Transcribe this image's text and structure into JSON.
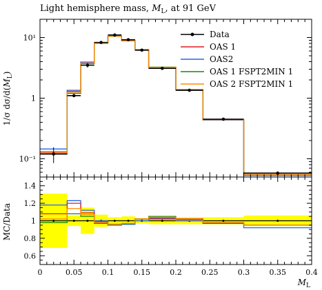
{
  "chart_data": [
    {
      "type": "line",
      "panel": "main",
      "title": "Light hemisphere mass, M_L, at 91 GeV",
      "xlabel": "M_L",
      "ylabel": "1/σ dσ/d(M_L)",
      "yscale": "log",
      "ylim": [
        0.05,
        20
      ],
      "xlim": [
        0,
        0.4
      ],
      "y_ticks": [
        0.1,
        1,
        10
      ],
      "y_tick_labels": [
        "10⁻¹",
        "1",
        "10¹"
      ],
      "bin_edges": [
        0.0,
        0.04,
        0.06,
        0.08,
        0.1,
        0.12,
        0.14,
        0.16,
        0.2,
        0.24,
        0.3,
        0.4
      ],
      "legend": {
        "position": "top-right"
      },
      "series": [
        {
          "name": "Data",
          "color": "#000000",
          "style": "points",
          "x": [
            0.02,
            0.05,
            0.07,
            0.09,
            0.11,
            0.13,
            0.15,
            0.18,
            0.22,
            0.27,
            0.35
          ],
          "y": [
            0.12,
            1.1,
            3.5,
            8.3,
            11.0,
            9.2,
            6.2,
            3.1,
            1.35,
            0.45,
            0.058
          ],
          "yerr": [
            0.035,
            0.05,
            0.3,
            0.3,
            0.3,
            0.3,
            0.2,
            0.1,
            0.05,
            0.015,
            0.003
          ]
        },
        {
          "name": "OAS 1",
          "color": "#e41a1c",
          "style": "hist",
          "values": [
            0.13,
            1.3,
            3.8,
            8.2,
            10.6,
            8.9,
            6.3,
            3.2,
            1.38,
            0.44,
            0.055
          ]
        },
        {
          "name": "OAS2",
          "color": "#2266ee",
          "style": "hist",
          "values": [
            0.145,
            1.35,
            3.95,
            8.25,
            10.5,
            8.8,
            6.2,
            3.15,
            1.35,
            0.435,
            0.053
          ]
        },
        {
          "name": "OAS 1 FSPT2MIN 1",
          "color": "#118811",
          "style": "hist",
          "values": [
            0.12,
            1.2,
            3.7,
            8.0,
            10.5,
            8.95,
            6.3,
            3.25,
            1.37,
            0.44,
            0.055
          ]
        },
        {
          "name": "OAS 2 FSPT2MIN 1",
          "color": "#ff8800",
          "style": "hist",
          "values": [
            0.125,
            1.25,
            3.75,
            8.1,
            10.55,
            8.9,
            6.35,
            3.22,
            1.36,
            0.44,
            0.055
          ]
        }
      ]
    },
    {
      "type": "line",
      "panel": "ratio",
      "xlabel": "M_L",
      "ylabel": "MC/Data",
      "ylim": [
        0.5,
        1.5
      ],
      "xlim": [
        0,
        0.4
      ],
      "x_ticks": [
        0,
        0.05,
        0.1,
        0.15,
        0.2,
        0.25,
        0.3,
        0.35,
        0.4
      ],
      "x_tick_labels": [
        "0",
        "0.05",
        "0.1",
        "0.15",
        "0.2",
        "0.25",
        "0.3",
        "0.35",
        "0.4"
      ],
      "y_ticks": [
        0.6,
        0.8,
        1.0,
        1.2,
        1.4
      ],
      "y_tick_labels": [
        "0.6",
        "0.8",
        "1",
        "1.2",
        "1.4"
      ],
      "bin_edges": [
        0.0,
        0.04,
        0.06,
        0.08,
        0.1,
        0.12,
        0.14,
        0.16,
        0.2,
        0.24,
        0.3,
        0.4
      ],
      "band": {
        "color": "#ffff00",
        "lo": [
          0.69,
          0.94,
          0.85,
          0.93,
          0.96,
          0.95,
          0.97,
          0.96,
          0.96,
          0.96,
          0.94
        ],
        "hi": [
          1.31,
          1.06,
          1.15,
          1.07,
          1.04,
          1.05,
          1.03,
          1.04,
          1.04,
          1.04,
          1.06
        ]
      },
      "series": [
        {
          "name": "OAS 1",
          "color": "#e41a1c",
          "values": [
            1.08,
            1.2,
            1.09,
            0.99,
            0.96,
            0.97,
            1.02,
            1.03,
            1.02,
            0.97,
            0.95
          ]
        },
        {
          "name": "OAS2",
          "color": "#2266ee",
          "values": [
            1.18,
            1.23,
            1.12,
            1.0,
            0.95,
            0.96,
            1.0,
            1.02,
            1.0,
            0.97,
            0.92
          ]
        },
        {
          "name": "OAS 1 FSPT2MIN 1",
          "color": "#118811",
          "values": [
            0.98,
            1.08,
            1.05,
            0.97,
            0.95,
            0.97,
            1.02,
            1.05,
            1.01,
            0.98,
            0.95
          ]
        },
        {
          "name": "OAS 2 FSPT2MIN 1",
          "color": "#ff8800",
          "values": [
            1.02,
            1.14,
            1.07,
            0.98,
            0.96,
            0.97,
            1.02,
            1.04,
            1.01,
            0.98,
            0.95
          ]
        }
      ]
    }
  ]
}
